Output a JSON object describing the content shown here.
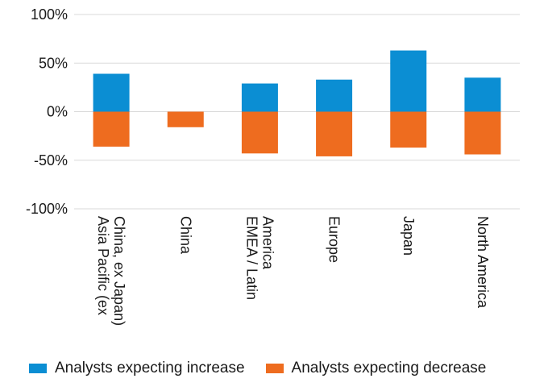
{
  "chart_data": {
    "type": "bar",
    "stacked": true,
    "categories": [
      [
        "Asia Pacific (ex",
        "China, ex Japan)"
      ],
      [
        "China"
      ],
      [
        "EMEA / Latin",
        "America"
      ],
      [
        "Europe"
      ],
      [
        "Japan"
      ],
      [
        "North America"
      ]
    ],
    "series": [
      {
        "name": "Analysts expecting increase",
        "color": "#0b8ed3",
        "values": [
          39,
          0,
          29,
          33,
          63,
          35
        ]
      },
      {
        "name": "Analysts expecting decrease",
        "color": "#ee6c1f",
        "values": [
          -36,
          -16,
          -43,
          -46,
          -37,
          -44
        ]
      }
    ],
    "y_ticks": [
      "100%",
      "50%",
      "0%",
      "-50%",
      "-100%"
    ],
    "ylim": [
      -100,
      100
    ],
    "grid": true,
    "legend_position": "bottom",
    "xlabel": "",
    "ylabel": ""
  }
}
